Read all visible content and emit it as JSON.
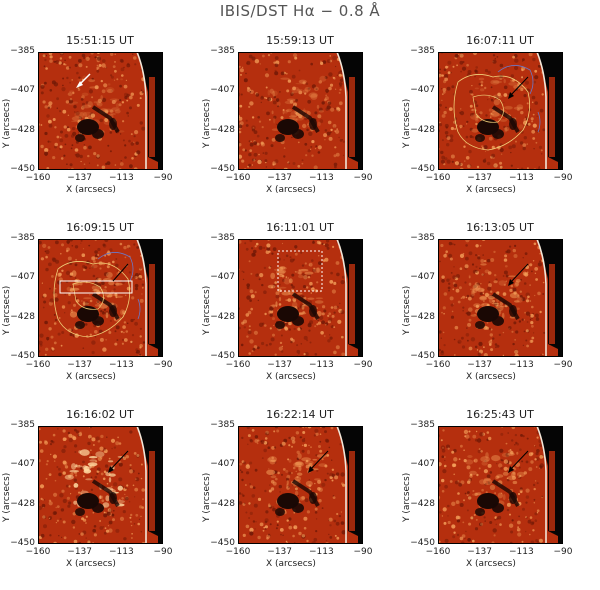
{
  "title": "IBIS/DST Hα − 0.8 Å",
  "axes": {
    "xlabel": "X (arcsecs)",
    "ylabel": "Y (arcsecs)",
    "xticks": [
      "−160",
      "−137",
      "−113",
      "−90"
    ],
    "yticks": [
      "−385",
      "−407",
      "−428",
      "−450"
    ]
  },
  "panels": [
    {
      "time": "15:51:15 UT",
      "contours": false,
      "annotation": "white-arrow"
    },
    {
      "time": "15:59:13 UT",
      "contours": false,
      "annotation": "none"
    },
    {
      "time": "16:07:11 UT",
      "contours": true,
      "annotation": "black-arrow"
    },
    {
      "time": "16:09:15 UT",
      "contours": true,
      "annotation": "white-rectangle"
    },
    {
      "time": "16:11:01 UT",
      "contours": false,
      "annotation": "dotted-box"
    },
    {
      "time": "16:13:05 UT",
      "contours": false,
      "annotation": "black-arrow"
    },
    {
      "time": "16:16:02 UT",
      "contours": false,
      "annotation": "black-arrow"
    },
    {
      "time": "16:22:14 UT",
      "contours": false,
      "annotation": "black-arrow"
    },
    {
      "time": "16:25:43 UT",
      "contours": false,
      "annotation": "black-arrow"
    }
  ],
  "colors": {
    "background": "#b52f0e",
    "bright": "#f4a05a",
    "dark": "#1a0804",
    "contour_yellow": "#f1d27a",
    "contour_blue": "#6a78c8"
  }
}
